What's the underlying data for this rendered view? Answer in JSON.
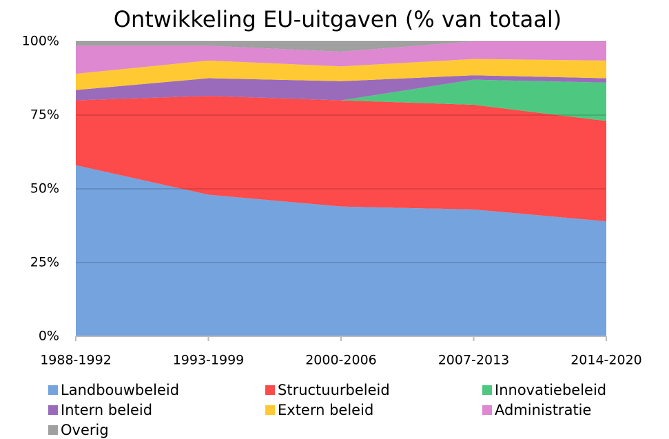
{
  "chart_data": {
    "type": "stacked_area",
    "title": "Ontwikkeling EU-uitgaven (% van totaal)",
    "categories": [
      "1988-1992",
      "1993-1999",
      "2000-2006",
      "2007-2013",
      "2014-2020"
    ],
    "series": [
      {
        "name": "Landbouwbeleid",
        "color": "#75a3dd",
        "values": [
          58,
          48,
          44,
          43,
          39
        ]
      },
      {
        "name": "Structuurbeleid",
        "color": "#fd4a4a",
        "values": [
          22,
          33.5,
          36,
          35.5,
          34
        ]
      },
      {
        "name": "Innovatiebeleid",
        "color": "#4ec880",
        "values": [
          0,
          0,
          0,
          8.5,
          13
        ]
      },
      {
        "name": "Intern beleid",
        "color": "#9a6bbb",
        "values": [
          3.5,
          6,
          6.5,
          1.5,
          1.5
        ]
      },
      {
        "name": "Extern beleid",
        "color": "#ffc933",
        "values": [
          5.5,
          6,
          5,
          5.5,
          6
        ]
      },
      {
        "name": "Administratie",
        "color": "#dd88d0",
        "values": [
          9.5,
          5,
          5,
          6,
          6.5
        ]
      },
      {
        "name": "Overig",
        "color": "#a0a0a0",
        "values": [
          1.5,
          1.5,
          3.5,
          0,
          0
        ]
      }
    ],
    "ylim": [
      0,
      100
    ],
    "yticks": [
      {
        "value": 0,
        "label": "0%"
      },
      {
        "value": 25,
        "label": "25%"
      },
      {
        "value": 50,
        "label": "50%"
      },
      {
        "value": 75,
        "label": "75%"
      },
      {
        "value": 100,
        "label": "100%"
      }
    ],
    "grid": true,
    "legend": "bottom"
  }
}
